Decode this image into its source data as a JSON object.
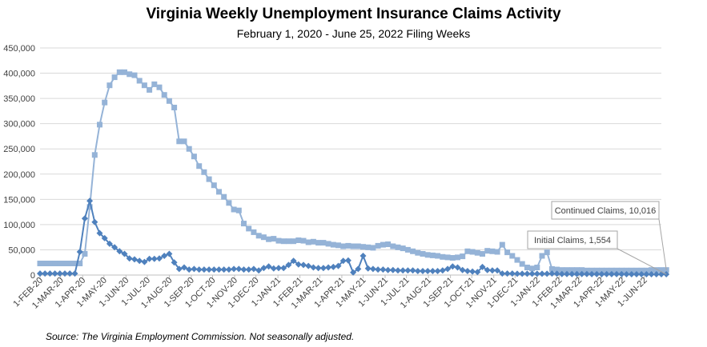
{
  "chart_data": {
    "type": "line",
    "title": "Virginia Weekly Unemployment Insurance Claims Activity",
    "subtitle": "February 1, 2020 - June 25, 2022 Filing Weeks",
    "source": "Source: The Virginia Employment Commission. Not seasonally adjusted.",
    "ylim": [
      0,
      450000
    ],
    "y_ticks": [
      "0",
      "50,000",
      "100,000",
      "150,000",
      "200,000",
      "250,000",
      "300,000",
      "350,000",
      "400,000",
      "450,000"
    ],
    "x_ticks": [
      {
        "label": "1-FEB-20",
        "date": "2020-02-01"
      },
      {
        "label": "1-MAR-20",
        "date": "2020-03-01"
      },
      {
        "label": "1-APR-20",
        "date": "2020-04-01"
      },
      {
        "label": "1-MAY-20",
        "date": "2020-05-01"
      },
      {
        "label": "1-JUN-20",
        "date": "2020-06-01"
      },
      {
        "label": "1-JUL-20",
        "date": "2020-07-01"
      },
      {
        "label": "1-AUG-20",
        "date": "2020-08-01"
      },
      {
        "label": "1-SEP-20",
        "date": "2020-09-01"
      },
      {
        "label": "1-OCT-20",
        "date": "2020-10-01"
      },
      {
        "label": "1-NOV-20",
        "date": "2020-11-01"
      },
      {
        "label": "1-DEC-20",
        "date": "2020-12-01"
      },
      {
        "label": "1-JAN-21",
        "date": "2021-01-01"
      },
      {
        "label": "1-FEB-21",
        "date": "2021-02-01"
      },
      {
        "label": "1-MAR-21",
        "date": "2021-03-01"
      },
      {
        "label": "1-APR-21",
        "date": "2021-04-01"
      },
      {
        "label": "1-MAY-21",
        "date": "2021-05-01"
      },
      {
        "label": "1-JUN-21",
        "date": "2021-06-01"
      },
      {
        "label": "1-JUL-21",
        "date": "2021-07-01"
      },
      {
        "label": "1-AUG-21",
        "date": "2021-08-01"
      },
      {
        "label": "1-SEP-21",
        "date": "2021-09-01"
      },
      {
        "label": "1-OCT-21",
        "date": "2021-10-01"
      },
      {
        "label": "1-NOV-21",
        "date": "2021-11-01"
      },
      {
        "label": "1-DEC-21",
        "date": "2021-12-01"
      },
      {
        "label": "1-JAN-22",
        "date": "2022-01-01"
      },
      {
        "label": "1-FEB-22",
        "date": "2022-02-01"
      },
      {
        "label": "1-MAR-22",
        "date": "2022-03-01"
      },
      {
        "label": "1-APR-22",
        "date": "2022-04-01"
      },
      {
        "label": "1-MAY-22",
        "date": "2022-05-01"
      },
      {
        "label": "1-JUN-22",
        "date": "2022-06-01"
      }
    ],
    "x_range": [
      "2020-02-01",
      "2022-06-25"
    ],
    "grid": "horizontal",
    "legend": "none",
    "series": [
      {
        "name": "Continued Claims",
        "color": "#95b3d7",
        "marker": "square",
        "x_start": "2020-02-01",
        "step_days": 7,
        "values": [
          23000,
          23000,
          23000,
          23000,
          23000,
          23000,
          23000,
          23000,
          23000,
          42000,
          135000,
          238000,
          298000,
          342000,
          376000,
          392000,
          402000,
          402000,
          398000,
          396000,
          385000,
          376000,
          367000,
          378000,
          372000,
          357000,
          345000,
          332000,
          265000,
          265000,
          250000,
          235000,
          216000,
          204000,
          190000,
          178000,
          165000,
          155000,
          143000,
          130000,
          128000,
          102000,
          92000,
          85000,
          78000,
          75000,
          71000,
          72000,
          68000,
          67000,
          67000,
          67000,
          69000,
          68000,
          65000,
          66000,
          64000,
          64000,
          62000,
          60000,
          59000,
          57000,
          58000,
          57000,
          57000,
          56000,
          55000,
          54000,
          58000,
          60000,
          61000,
          57000,
          55000,
          53000,
          50000,
          47000,
          44000,
          42000,
          40000,
          39000,
          38000,
          36000,
          35000,
          34000,
          35000,
          37000,
          47000,
          46000,
          44000,
          42000,
          48000,
          47000,
          46000,
          60000,
          45000,
          38000,
          30000,
          22000,
          15000,
          13000,
          15000,
          38000,
          45000,
          12000,
          11000,
          10000,
          10000,
          10000,
          10000,
          10000,
          9000,
          9000,
          9000,
          9000,
          9000,
          9000,
          9000,
          9000,
          9000,
          9000,
          9000,
          9000,
          9000,
          10000,
          10000,
          10000,
          10016
        ]
      },
      {
        "name": "Initial Claims",
        "color": "#4f81bd",
        "marker": "diamond",
        "x_start": "2020-02-01",
        "step_days": 7,
        "values": [
          3000,
          3000,
          3000,
          3000,
          3000,
          3000,
          3000,
          3000,
          46000,
          112000,
          147000,
          105000,
          83000,
          73000,
          62000,
          55000,
          47000,
          42000,
          33000,
          31000,
          28000,
          26000,
          32000,
          32000,
          33000,
          38000,
          42000,
          25000,
          12000,
          15000,
          11000,
          12000,
          11000,
          11000,
          11000,
          11000,
          11000,
          11000,
          11000,
          12000,
          12000,
          11000,
          11000,
          12000,
          9000,
          14000,
          17000,
          13000,
          14000,
          14000,
          20000,
          28000,
          21000,
          20000,
          18000,
          15000,
          14000,
          14000,
          15000,
          16000,
          18000,
          28000,
          29000,
          5000,
          12000,
          38000,
          13000,
          12000,
          11000,
          11000,
          10000,
          10000,
          9000,
          9000,
          9000,
          9000,
          8000,
          8000,
          8000,
          8000,
          8000,
          9000,
          12000,
          17000,
          15000,
          10000,
          8000,
          7000,
          6000,
          16000,
          10000,
          9000,
          9000,
          3000,
          3000,
          3000,
          2500,
          2500,
          2500,
          2500,
          2500,
          2500,
          2500,
          3000,
          2500,
          2000,
          2000,
          2000,
          2000,
          2000,
          2000,
          1800,
          1800,
          1800,
          1800,
          1800,
          1800,
          1800,
          1600,
          1600,
          1600,
          1600,
          1600,
          1600,
          1600,
          1600,
          1554
        ]
      }
    ],
    "annotations": [
      {
        "series": "Continued Claims",
        "label": "Continued Claims, 10,016"
      },
      {
        "series": "Initial Claims",
        "label": "Initial Claims, 1,554"
      }
    ]
  }
}
